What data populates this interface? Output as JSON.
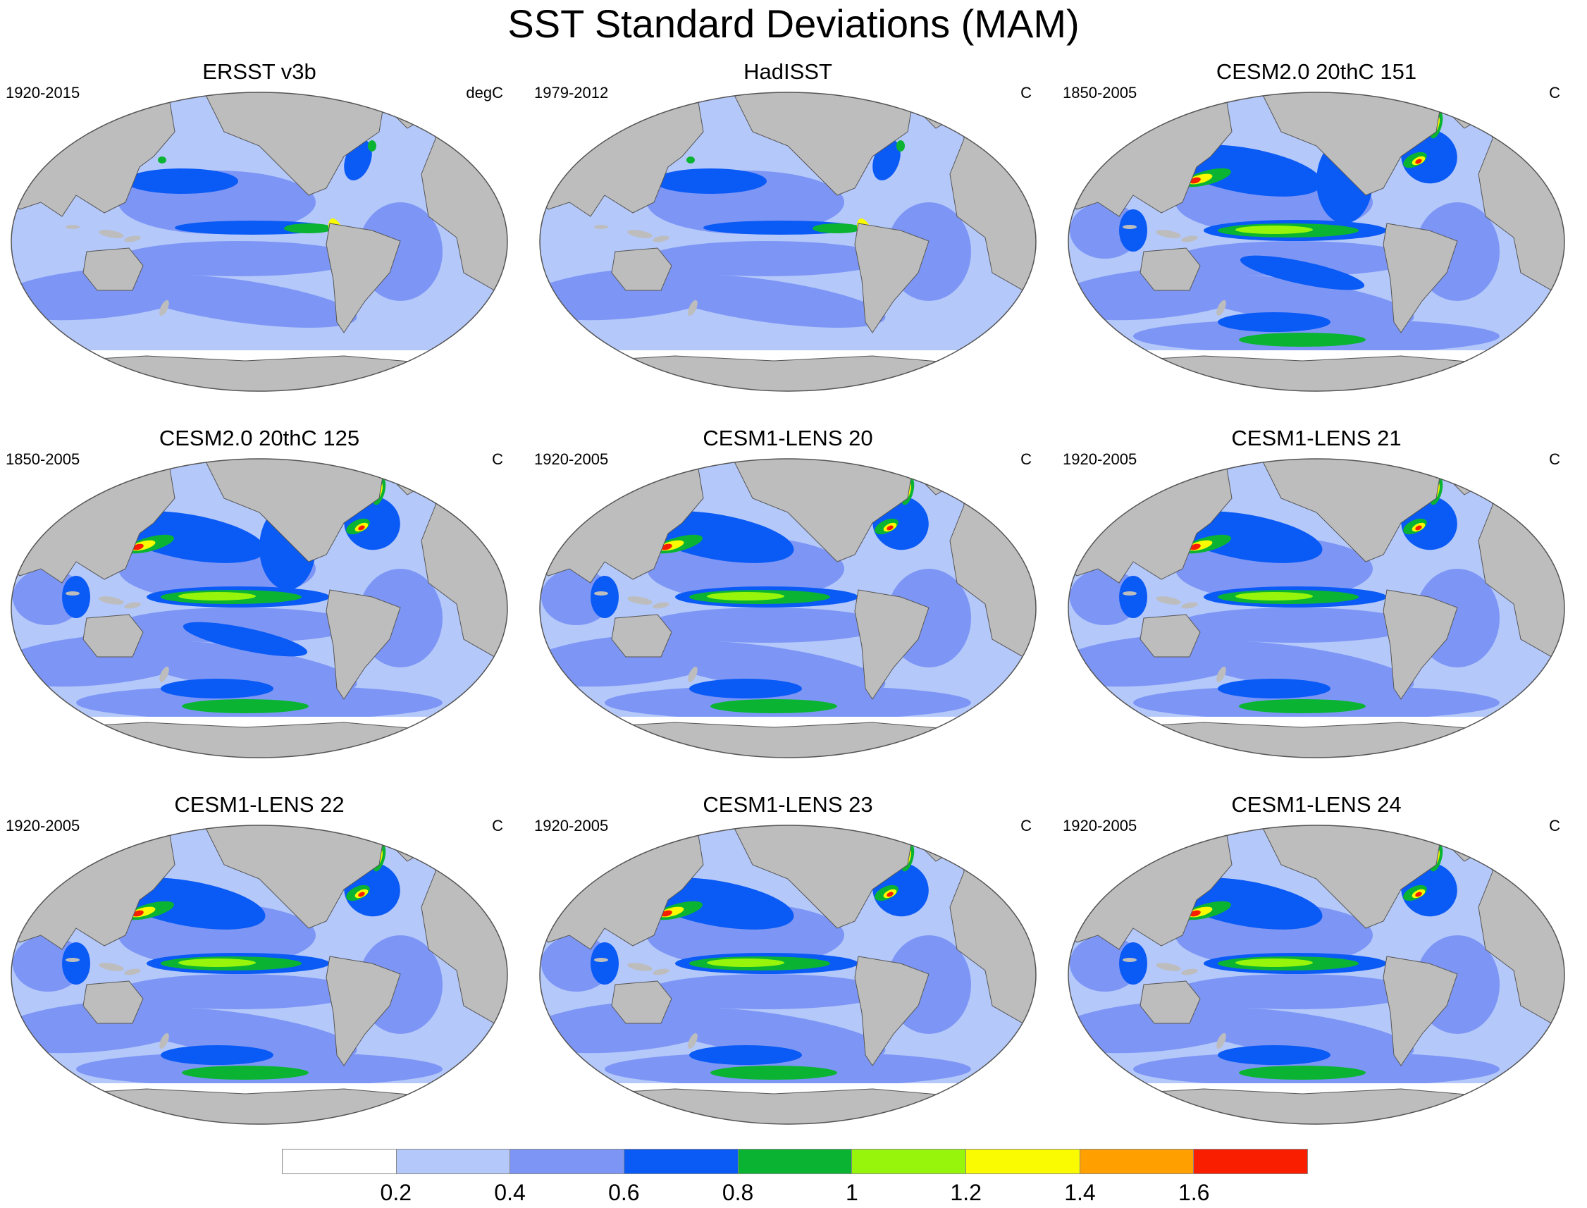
{
  "title": "SST Standard Deviations (MAM)",
  "panels": [
    {
      "title": "ERSST v3b",
      "period": "1920-2015",
      "units": "degC"
    },
    {
      "title": "HadISST",
      "period": "1979-2012",
      "units": "C"
    },
    {
      "title": "CESM2.0 20thC 151",
      "period": "1850-2005",
      "units": "C"
    },
    {
      "title": "CESM2.0 20thC 125",
      "period": "1850-2005",
      "units": "C"
    },
    {
      "title": "CESM1-LENS 20",
      "period": "1920-2005",
      "units": "C"
    },
    {
      "title": "CESM1-LENS 21",
      "period": "1920-2005",
      "units": "C"
    },
    {
      "title": "CESM1-LENS 22",
      "period": "1920-2005",
      "units": "C"
    },
    {
      "title": "CESM1-LENS 23",
      "period": "1920-2005",
      "units": "C"
    },
    {
      "title": "CESM1-LENS 24",
      "period": "1920-2005",
      "units": "C"
    }
  ],
  "colorbar": {
    "colors": [
      "#ffffff",
      "#b4c8fa",
      "#7d96f5",
      "#0a5af5",
      "#0ab432",
      "#96f50a",
      "#fafa00",
      "#ffa000",
      "#fa1e00"
    ],
    "tick_labels": [
      "0.2",
      "0.4",
      "0.6",
      "0.8",
      "1",
      "1.2",
      "1.4",
      "1.6"
    ]
  },
  "map_colors": {
    "land": "#bdbdbd",
    "ocean_base": "#b4c8fa",
    "ocean_mid": "#7d96f5",
    "ocean_high": "#0a5af5",
    "green": "#0ab432",
    "lime": "#96f50a",
    "yellow": "#fafa00",
    "orange": "#ffa000",
    "red": "#fa1e00",
    "white": "#ffffff"
  }
}
